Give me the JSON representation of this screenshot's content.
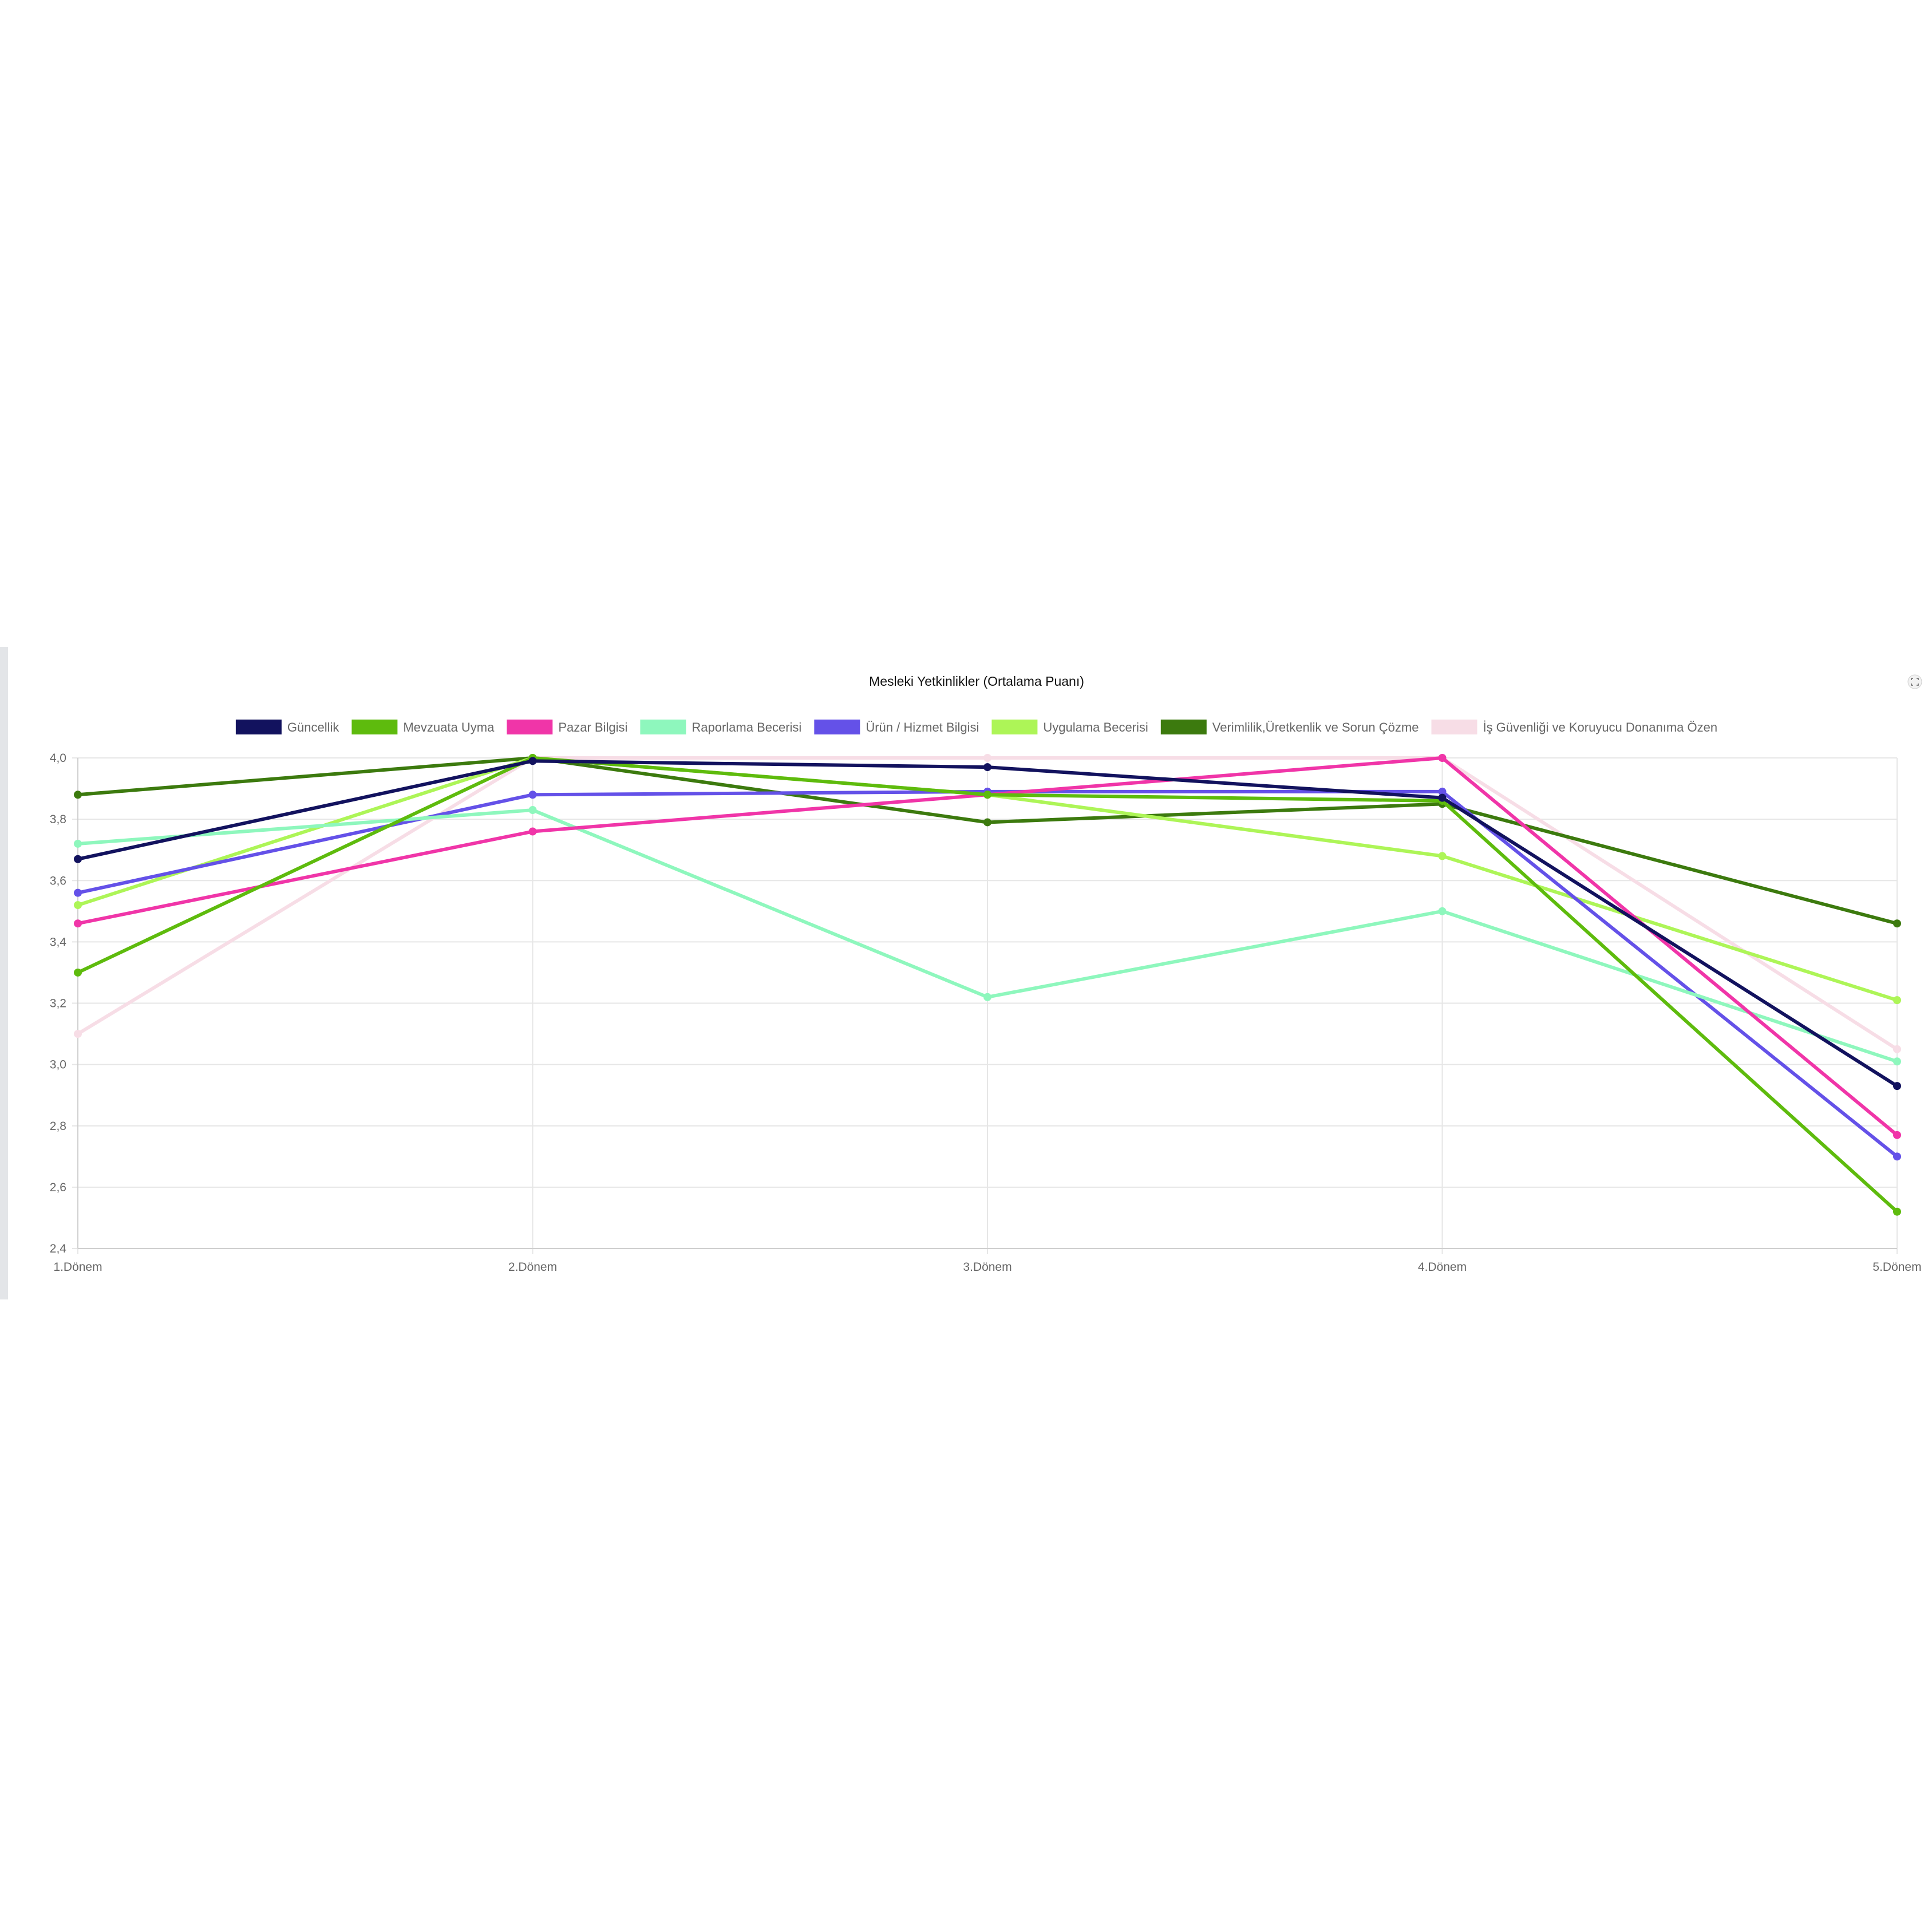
{
  "chart_data": {
    "type": "line",
    "title": "Mesleki Yetkinlikler (Ortalama Puanı)",
    "xlabel": "",
    "ylabel": "",
    "categories": [
      "1.Dönem",
      "2.Dönem",
      "3.Dönem",
      "4.Dönem",
      "5.Dönem"
    ],
    "ylim": [
      2.4,
      4.0
    ],
    "yticks": [
      "2,4",
      "2,6",
      "2,8",
      "3,0",
      "3,2",
      "3,4",
      "3,6",
      "3,8",
      "4,0"
    ],
    "grid": true,
    "legend_position": "top",
    "series": [
      {
        "name": "Güncellik",
        "color": "#12125e",
        "values": [
          3.67,
          3.99,
          3.97,
          3.87,
          2.93
        ]
      },
      {
        "name": "Mevzuata Uyma",
        "color": "#5ebb0d",
        "values": [
          3.3,
          4.0,
          3.88,
          3.86,
          2.52
        ]
      },
      {
        "name": "Pazar Bilgisi",
        "color": "#f035a8",
        "values": [
          3.46,
          3.76,
          3.88,
          4.0,
          2.77
        ]
      },
      {
        "name": "Raporlama  Becerisi",
        "color": "#8ef7bd",
        "values": [
          3.72,
          3.83,
          3.22,
          3.5,
          3.01
        ]
      },
      {
        "name": "Ürün / Hizmet Bilgisi",
        "color": "#6451e8",
        "values": [
          3.56,
          3.88,
          3.89,
          3.89,
          2.7
        ]
      },
      {
        "name": "Uygulama Becerisi",
        "color": "#adf557",
        "values": [
          3.52,
          4.0,
          3.88,
          3.68,
          3.21
        ]
      },
      {
        "name": "Verimlilik,Üretkenlik ve Sorun Çözme",
        "color": "#3c7a0e",
        "values": [
          3.88,
          4.0,
          3.79,
          3.85,
          3.46
        ]
      },
      {
        "name": "İş Güvenliği ve Koruyucu Donanıma Özen",
        "color": "#f7dde6",
        "values": [
          3.1,
          4.0,
          4.0,
          4.0,
          3.05
        ]
      }
    ]
  },
  "icons": {
    "fullscreen": "fullscreen-icon"
  }
}
